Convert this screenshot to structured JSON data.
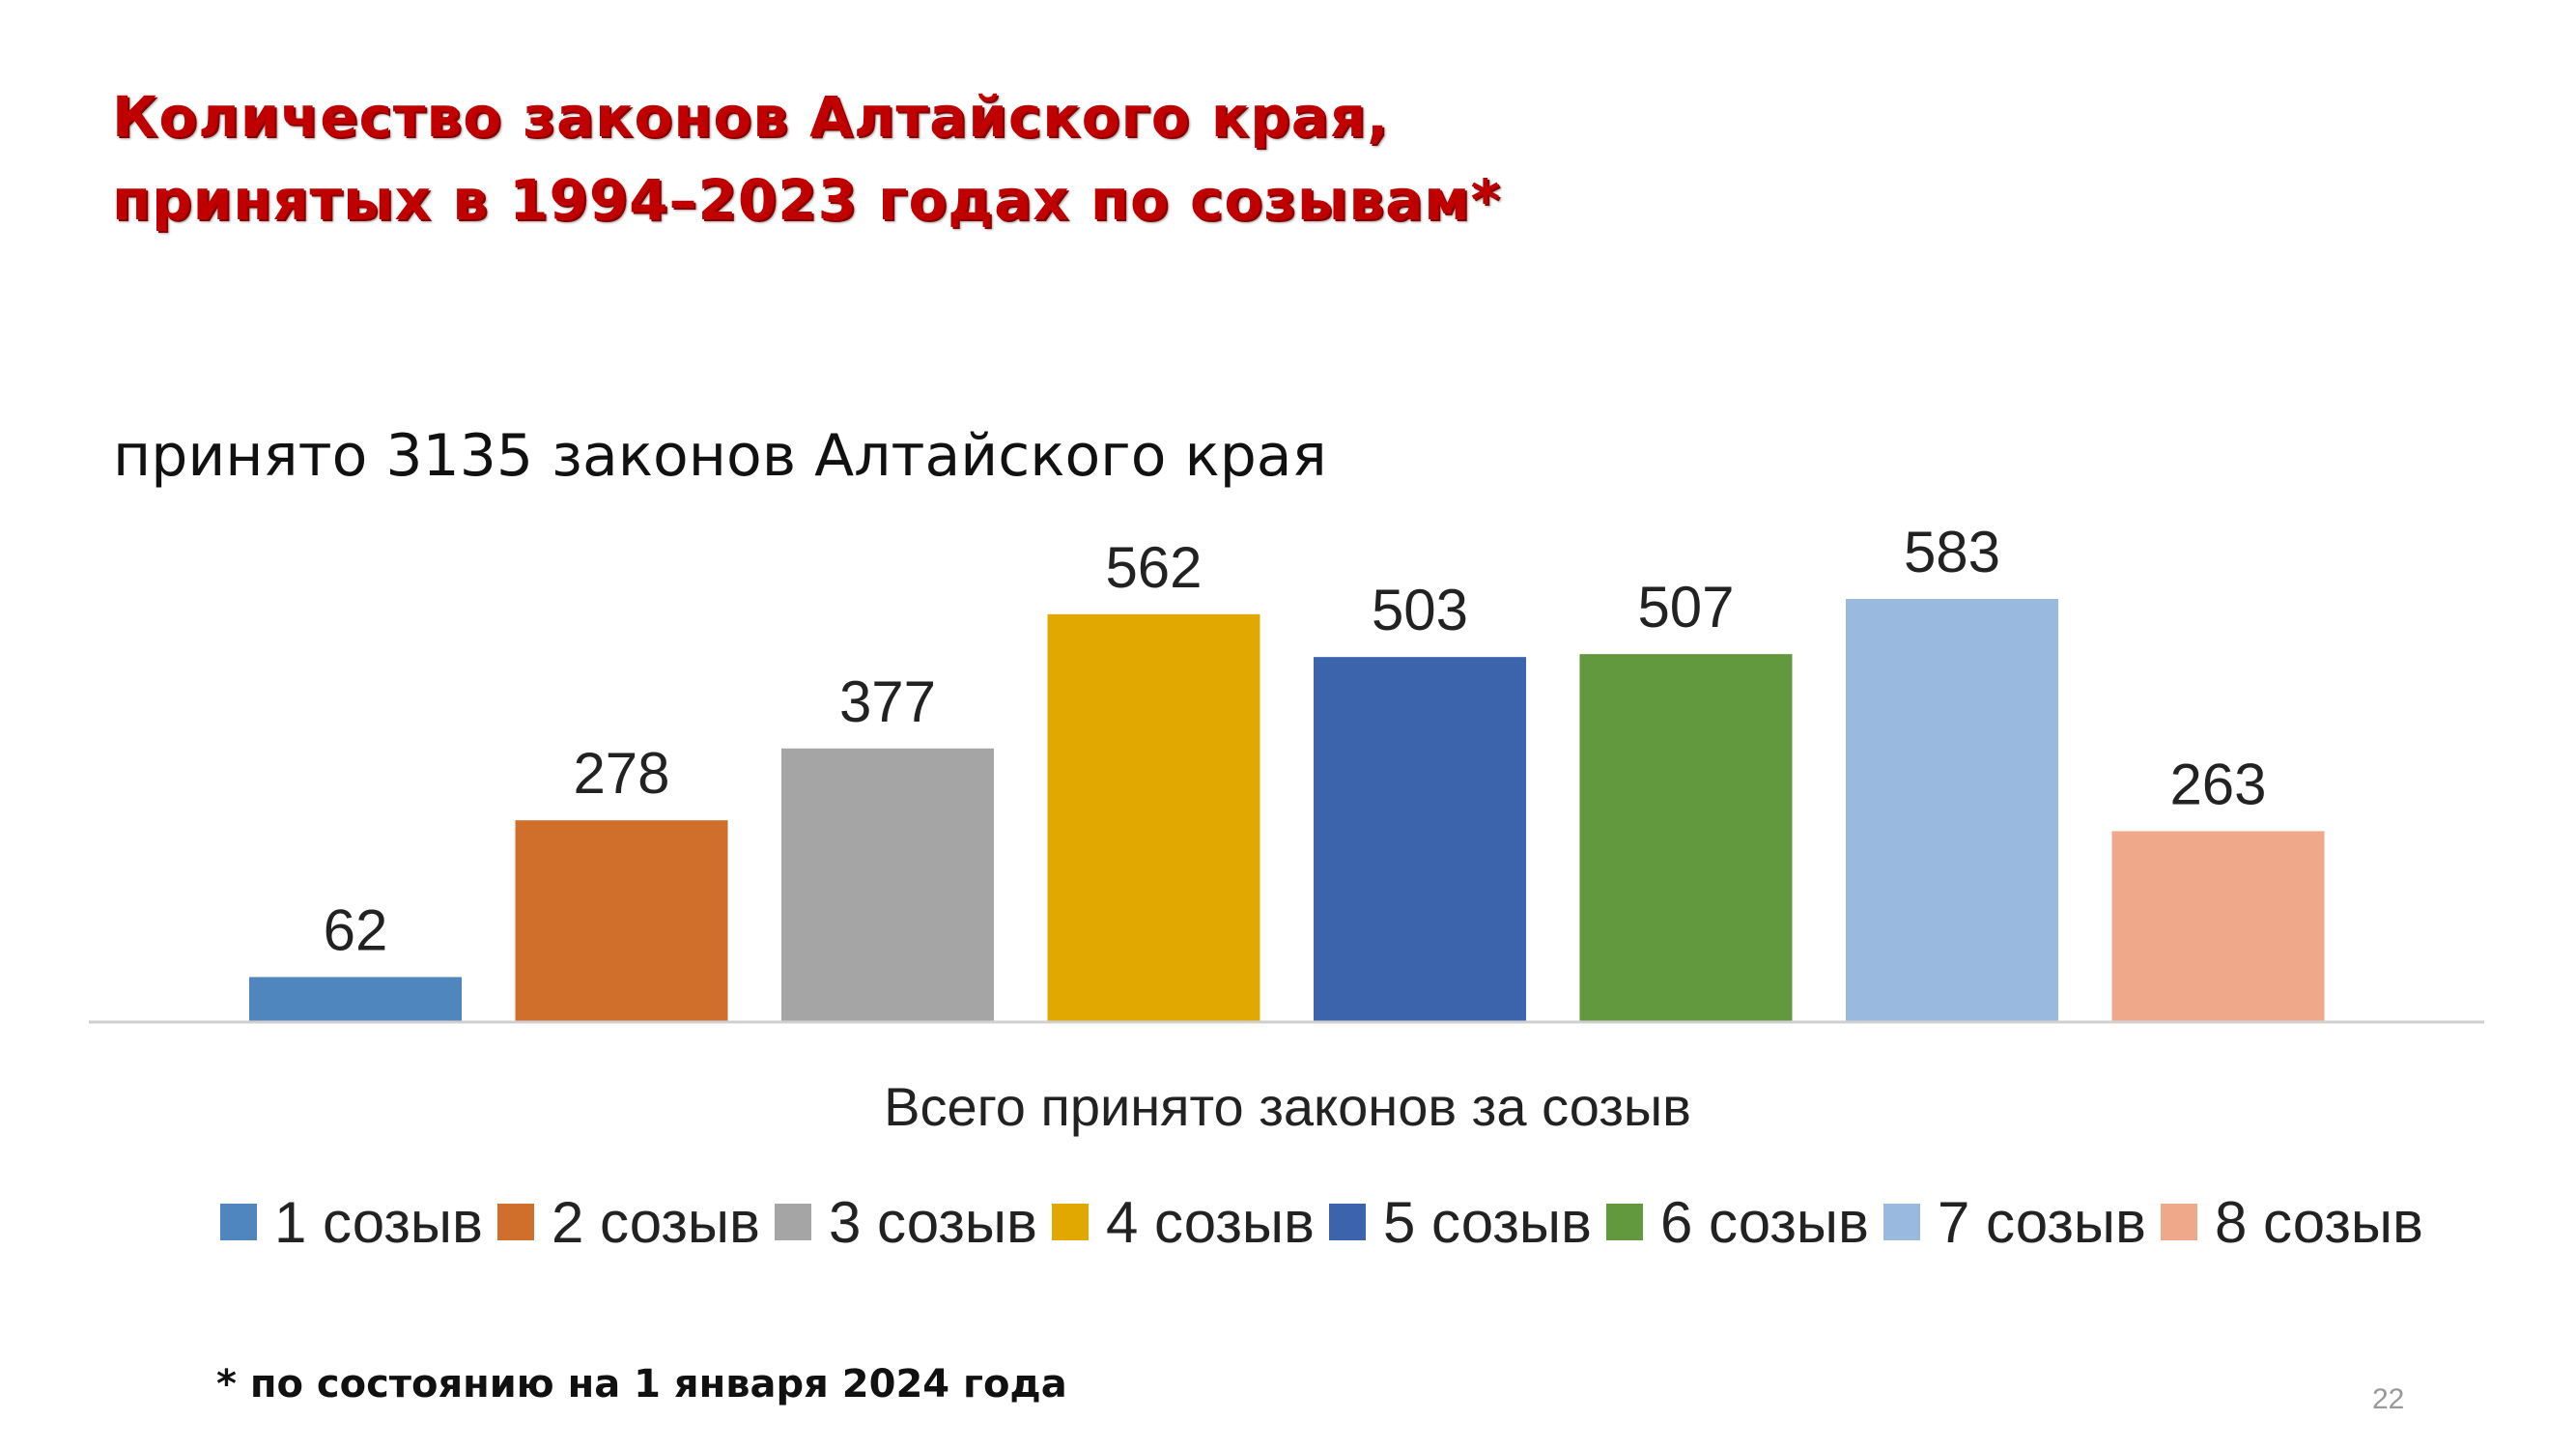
{
  "slide": {
    "title_line1": "Количество законов Алтайского края,",
    "title_line2": "принятых в 1994–2023 годах по созывам*",
    "subtitle": "принято 3135  законов Алтайского края",
    "footnote": "* по состоянию на 1 января 2024 года",
    "page_number": "22"
  },
  "chart_data": {
    "type": "bar",
    "xlabel": "Всего принято законов за созыв",
    "ylabel": "",
    "ylim": [
      0,
      600
    ],
    "grid": false,
    "legend_position": "bottom",
    "categories": [
      "Всего принято законов за созыв"
    ],
    "series": [
      {
        "name": "1 созыв",
        "values": [
          62
        ],
        "color": "#4f86bd"
      },
      {
        "name": "2 созыв",
        "values": [
          278
        ],
        "color": "#d06e2c"
      },
      {
        "name": "3 созыв",
        "values": [
          377
        ],
        "color": "#a5a5a5"
      },
      {
        "name": "4 созыв",
        "values": [
          562
        ],
        "color": "#e0a800"
      },
      {
        "name": "5 созыв",
        "values": [
          503
        ],
        "color": "#3c64ac"
      },
      {
        "name": "6 созыв",
        "values": [
          507
        ],
        "color": "#62993f"
      },
      {
        "name": "7 созыв",
        "values": [
          583
        ],
        "color": "#9ab9de"
      },
      {
        "name": "8 созыв",
        "values": [
          263
        ],
        "color": "#f0a88a"
      }
    ]
  }
}
